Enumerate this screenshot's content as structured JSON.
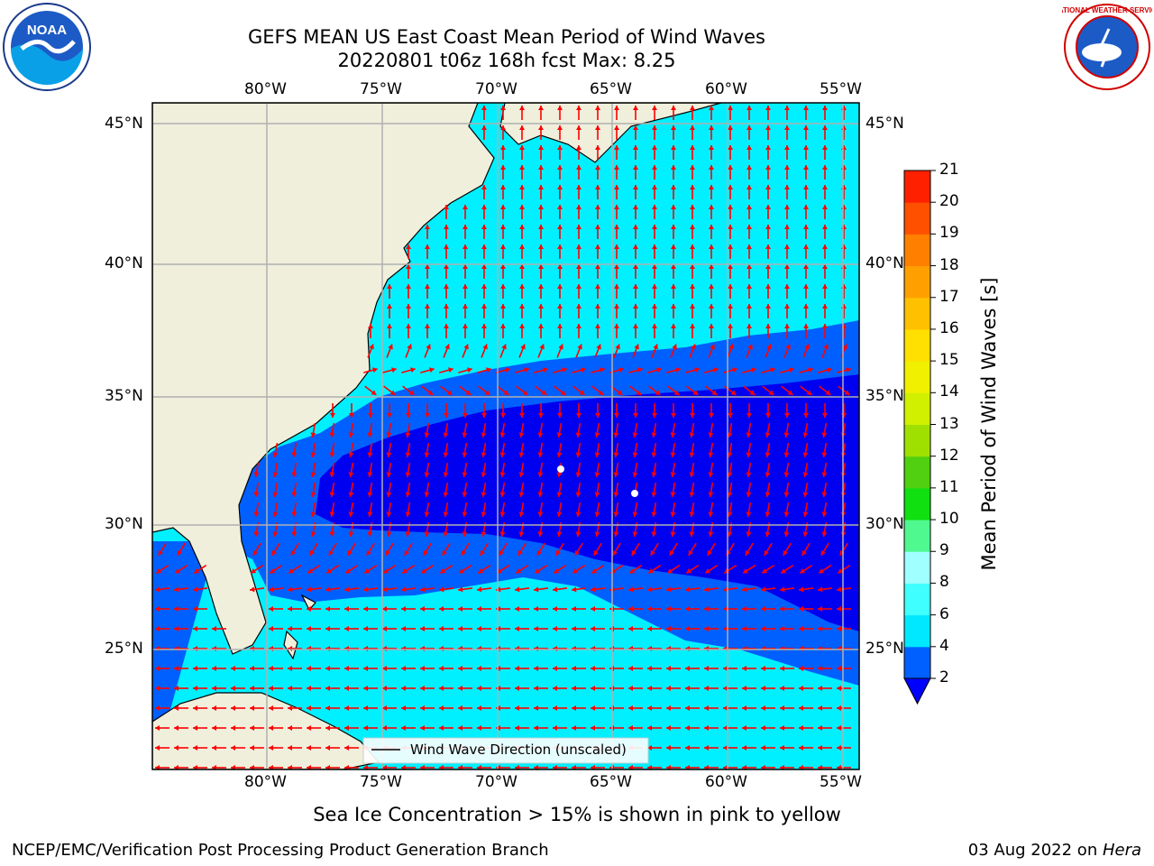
{
  "title_line1": "GEFS MEAN US East Coast Mean Period of Wind Waves",
  "title_line2": "20220801 t06z 168h fcst   Max: 8.25",
  "logos": {
    "left": "NOAA",
    "right": "NATIONAL WEATHER SERVICE"
  },
  "lon_labels": [
    "80°W",
    "75°W",
    "70°W",
    "65°W",
    "60°W",
    "55°W"
  ],
  "lat_labels": [
    "45°N",
    "40°N",
    "35°N",
    "30°N",
    "25°N"
  ],
  "legend_label": "Wind Wave Direction (unscaled)",
  "colorbar": {
    "label": "Mean Period of Wind Waves [s]",
    "ticks": [
      "2",
      "4",
      "6",
      "8",
      "9",
      "10",
      "11",
      "12",
      "13",
      "14",
      "15",
      "16",
      "17",
      "18",
      "19",
      "20",
      "21"
    ],
    "colors": [
      "#0060ff",
      "#00e8ff",
      "#40ffff",
      "#a0ffff",
      "#50f890",
      "#10e010",
      "#50d010",
      "#a0e000",
      "#d0f000",
      "#f0f000",
      "#ffe000",
      "#ffc000",
      "#ffa000",
      "#ff8000",
      "#ff5000",
      "#ff2000"
    ],
    "under_color": "#0000ff"
  },
  "map_colors": {
    "land": "#efefdc",
    "deep": "#0000f0",
    "mid": "#0060ff",
    "shallow": "#00f0ff",
    "arrow": "#ff0000",
    "grid": "#b0b0b0"
  },
  "caption": "Sea Ice Concentration > 15% is shown in pink to yellow",
  "footer_left": "NCEP/EMC/Verification Post Processing Product Generation Branch",
  "footer_date": "03 Aug 2022 on ",
  "footer_machine": "Hera"
}
